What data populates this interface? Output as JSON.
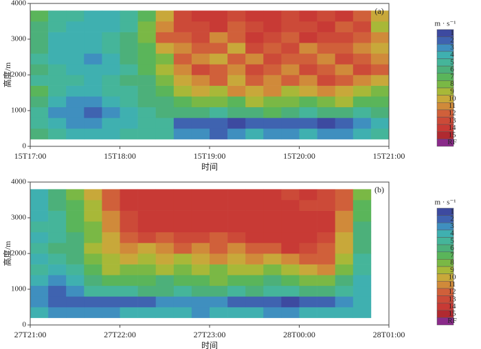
{
  "chart_data": [
    {
      "type": "heatmap",
      "panel_label": "(a)",
      "xlabel": "时间",
      "ylabel": "高度/m",
      "xlim": [
        0,
        4
      ],
      "xticks": [
        {
          "value": 0,
          "label": "15T17:00"
        },
        {
          "value": 1,
          "label": "15T18:00"
        },
        {
          "value": 2,
          "label": "15T19:00"
        },
        {
          "value": 3,
          "label": "15T20:00"
        },
        {
          "value": 4,
          "label": "15T21:00"
        }
      ],
      "ylim": [
        0,
        4000
      ],
      "yticks": [
        0,
        1000,
        2000,
        3000,
        4000
      ],
      "x_bins": [
        0,
        0.2,
        0.4,
        0.6,
        0.8,
        1,
        1.2,
        1.4,
        1.6,
        1.8,
        2,
        2.2,
        2.4,
        2.6,
        2.8,
        3,
        3.2,
        3.4,
        3.6,
        3.8,
        4
      ],
      "y_bins": [
        200,
        500,
        800,
        1100,
        1400,
        1700,
        2000,
        2300,
        2600,
        2900,
        3200,
        3500,
        3800
      ],
      "z": [
        [
          6,
          5,
          4,
          4,
          4,
          5,
          5,
          5,
          3,
          3,
          2,
          3,
          4,
          3,
          3,
          4,
          3,
          3,
          4,
          5
        ],
        [
          5,
          4,
          3,
          3,
          4,
          4,
          5,
          5,
          2,
          2,
          2,
          1,
          2,
          2,
          2,
          2,
          1,
          2,
          3,
          4
        ],
        [
          5,
          3,
          3,
          2,
          3,
          4,
          5,
          6,
          6,
          6,
          5,
          6,
          6,
          7,
          6,
          5,
          6,
          6,
          5,
          6
        ],
        [
          6,
          4,
          3,
          3,
          4,
          5,
          6,
          6,
          7,
          8,
          8,
          7,
          9,
          8,
          8,
          7,
          8,
          9,
          7,
          7
        ],
        [
          7,
          5,
          4,
          4,
          5,
          5,
          6,
          7,
          9,
          10,
          9,
          11,
          10,
          11,
          9,
          10,
          11,
          10,
          9,
          8
        ],
        [
          5,
          5,
          5,
          4,
          5,
          6,
          6,
          8,
          10,
          11,
          12,
          10,
          12,
          11,
          12,
          11,
          13,
          12,
          11,
          10
        ],
        [
          6,
          5,
          4,
          4,
          4,
          5,
          7,
          9,
          11,
          13,
          12,
          11,
          13,
          12,
          11,
          13,
          12,
          11,
          13,
          12
        ],
        [
          5,
          4,
          4,
          3,
          4,
          6,
          7,
          8,
          12,
          11,
          10,
          12,
          11,
          13,
          12,
          12,
          11,
          13,
          12,
          11
        ],
        [
          6,
          4,
          4,
          4,
          5,
          6,
          7,
          10,
          11,
          12,
          12,
          10,
          13,
          12,
          13,
          11,
          12,
          12,
          11,
          10
        ],
        [
          6,
          4,
          4,
          4,
          5,
          6,
          8,
          12,
          12,
          13,
          11,
          12,
          14,
          13,
          12,
          14,
          13,
          13,
          12,
          11
        ],
        [
          6,
          5,
          4,
          4,
          4,
          5,
          8,
          11,
          13,
          13,
          14,
          12,
          13,
          14,
          13,
          13,
          14,
          12,
          13,
          9
        ],
        [
          7,
          5,
          5,
          4,
          4,
          5,
          7,
          10,
          13,
          14,
          14,
          13,
          14,
          14,
          13,
          14,
          13,
          14,
          12,
          10
        ]
      ],
      "colorbar": {
        "title": "m · s⁻¹",
        "labels": [
          "1",
          "2",
          "3",
          "4",
          "5",
          "6",
          "7",
          "8",
          "9",
          "10",
          "11",
          "12",
          "13",
          "14",
          "15",
          "RF"
        ],
        "colors": [
          "#3d4aa0",
          "#3f63b0",
          "#3f8fbf",
          "#3fb0b0",
          "#45b59a",
          "#4cb07a",
          "#5ab55a",
          "#7ab845",
          "#a8b838",
          "#c8a83a",
          "#d08a3a",
          "#d0603a",
          "#cc4a38",
          "#c83a35",
          "#b02a30",
          "#8a2a8a"
        ]
      }
    },
    {
      "type": "heatmap",
      "panel_label": "(b)",
      "xlabel": "时间",
      "ylabel": "高度/m",
      "xlim": [
        0,
        4
      ],
      "xticks": [
        {
          "value": 0,
          "label": "27T21:00"
        },
        {
          "value": 1,
          "label": "27T22:00"
        },
        {
          "value": 2,
          "label": "27T23:00"
        },
        {
          "value": 3,
          "label": "28T00:00"
        },
        {
          "value": 4,
          "label": "28T01:00"
        }
      ],
      "ylim": [
        0,
        4000
      ],
      "yticks": [
        0,
        1000,
        2000,
        3000,
        4000
      ],
      "x_bins": [
        0,
        0.2,
        0.4,
        0.6,
        0.8,
        1,
        1.2,
        1.4,
        1.6,
        1.8,
        2,
        2.2,
        2.4,
        2.6,
        2.8,
        3,
        3.2,
        3.4,
        3.6,
        3.8
      ],
      "y_bins": [
        200,
        500,
        800,
        1100,
        1400,
        1700,
        2000,
        2300,
        2600,
        2900,
        3200,
        3500,
        3800
      ],
      "z": [
        [
          4,
          3,
          3,
          3,
          3,
          4,
          4,
          4,
          4,
          3,
          4,
          4,
          4,
          3,
          3,
          4,
          4,
          4,
          4
        ],
        [
          3,
          2,
          2,
          2,
          2,
          2,
          2,
          3,
          3,
          3,
          3,
          2,
          2,
          2,
          1,
          2,
          2,
          3,
          4
        ],
        [
          3,
          2,
          3,
          5,
          5,
          5,
          6,
          6,
          5,
          6,
          6,
          5,
          6,
          5,
          5,
          6,
          6,
          5,
          4
        ],
        [
          4,
          3,
          4,
          6,
          7,
          7,
          7,
          6,
          7,
          7,
          8,
          7,
          7,
          6,
          7,
          8,
          8,
          6,
          4
        ],
        [
          5,
          4,
          5,
          7,
          9,
          8,
          8,
          9,
          8,
          9,
          8,
          9,
          9,
          8,
          9,
          10,
          11,
          8,
          5
        ],
        [
          4,
          5,
          6,
          8,
          9,
          10,
          9,
          10,
          9,
          10,
          11,
          10,
          11,
          10,
          11,
          12,
          12,
          9,
          5
        ],
        [
          5,
          6,
          6,
          9,
          10,
          11,
          10,
          11,
          12,
          11,
          12,
          11,
          12,
          12,
          14,
          13,
          12,
          10,
          6
        ],
        [
          4,
          5,
          6,
          8,
          10,
          12,
          13,
          12,
          13,
          13,
          12,
          13,
          14,
          14,
          14,
          14,
          13,
          10,
          6
        ],
        [
          5,
          5,
          7,
          8,
          11,
          13,
          14,
          14,
          14,
          14,
          14,
          14,
          14,
          14,
          14,
          14,
          14,
          11,
          6
        ],
        [
          4,
          5,
          7,
          9,
          11,
          13,
          14,
          14,
          14,
          14,
          14,
          14,
          14,
          14,
          14,
          14,
          14,
          11,
          7
        ],
        [
          4,
          6,
          7,
          9,
          12,
          14,
          14,
          14,
          14,
          14,
          14,
          14,
          14,
          14,
          14,
          13,
          13,
          12,
          7
        ],
        [
          4,
          6,
          8,
          10,
          12,
          14,
          14,
          14,
          14,
          14,
          14,
          14,
          14,
          14,
          13,
          14,
          13,
          12,
          8
        ]
      ],
      "colorbar": {
        "title": "m · s⁻¹",
        "labels": [
          "1",
          "2",
          "3",
          "4",
          "5",
          "6",
          "7",
          "8",
          "9",
          "10",
          "11",
          "12",
          "13",
          "14",
          "15",
          "RF"
        ],
        "colors": [
          "#3d4aa0",
          "#3f63b0",
          "#3f8fbf",
          "#3fb0b0",
          "#45b59a",
          "#4cb07a",
          "#5ab55a",
          "#7ab845",
          "#a8b838",
          "#c8a83a",
          "#d08a3a",
          "#d0603a",
          "#cc4a38",
          "#c83a35",
          "#b02a30",
          "#8a2a8a"
        ]
      }
    }
  ]
}
